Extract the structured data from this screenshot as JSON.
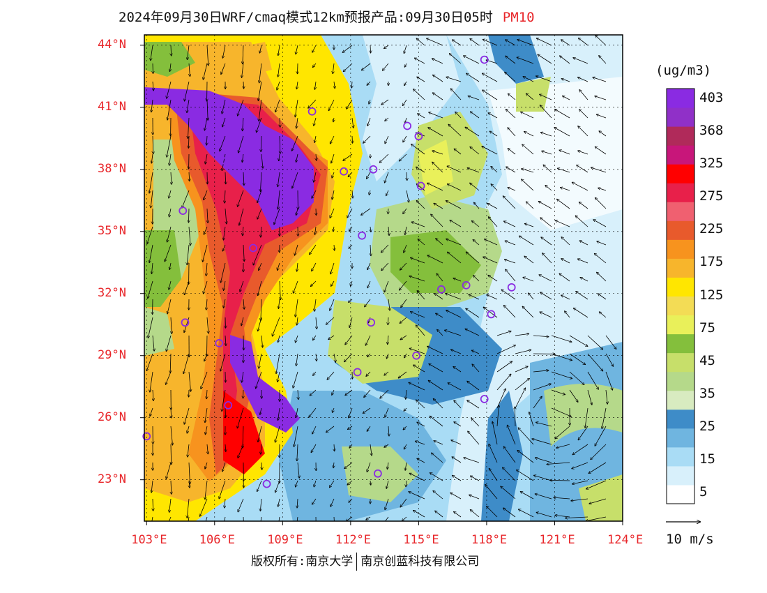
{
  "title": {
    "main": "2024年09月30日WRF/cmaq模式12km预报产品:09月30日05时",
    "pollutant": "PM10"
  },
  "axes": {
    "lat_labels": [
      "44°N",
      "41°N",
      "38°N",
      "35°N",
      "32°N",
      "29°N",
      "26°N",
      "23°N"
    ],
    "lat_values": [
      44,
      41,
      38,
      35,
      32,
      29,
      26,
      23
    ],
    "lon_labels": [
      "103°E",
      "106°E",
      "109°E",
      "112°E",
      "115°E",
      "118°E",
      "121°E",
      "124°E"
    ],
    "lon_values": [
      103,
      106,
      109,
      112,
      115,
      118,
      121,
      124
    ],
    "lon_range": [
      102.9,
      124
    ],
    "lat_range": [
      21,
      44.5
    ]
  },
  "colorbar": {
    "unit": "(ug/m3)",
    "labels": [
      "403",
      "368",
      "325",
      "275",
      "225",
      "175",
      "125",
      "75",
      "45",
      "35",
      "25",
      "15",
      "5"
    ],
    "colors": [
      "#ffffff",
      "#d8f0fb",
      "#a9dcf5",
      "#6fb5e0",
      "#3e8cc8",
      "#d8ebc0",
      "#b5d98a",
      "#c7df6a",
      "#84bf3c",
      "#e9f05a",
      "#f3dc55",
      "#ffe600",
      "#f7b52c",
      "#f7931e",
      "#e85a2c",
      "#f06070",
      "#e8204a",
      "#ff0000",
      "#c8167a",
      "#b02a5a",
      "#9030c8",
      "#8a2be2"
    ]
  },
  "vector_legend": {
    "label": "10 m/s"
  },
  "footer": {
    "left": "版权所有:南京大学",
    "right": "南京创蓝科技有限公司"
  },
  "stations": [
    [
      103.0,
      25.1
    ],
    [
      104.6,
      36.0
    ],
    [
      104.7,
      30.6
    ],
    [
      106.5,
      38.4
    ],
    [
      107.7,
      34.2
    ],
    [
      106.2,
      29.6
    ],
    [
      106.6,
      26.6
    ],
    [
      108.3,
      22.8
    ],
    [
      110.3,
      40.8
    ],
    [
      111.7,
      37.9
    ],
    [
      112.5,
      34.8
    ],
    [
      113.0,
      38.0
    ],
    [
      114.5,
      40.1
    ],
    [
      115.0,
      39.6
    ],
    [
      115.1,
      37.2
    ],
    [
      112.9,
      30.6
    ],
    [
      112.3,
      28.2
    ],
    [
      114.9,
      29.0
    ],
    [
      116.0,
      32.2
    ],
    [
      117.1,
      32.4
    ],
    [
      118.2,
      31.0
    ],
    [
      119.1,
      32.3
    ],
    [
      117.9,
      26.9
    ],
    [
      113.2,
      23.3
    ],
    [
      117.9,
      43.3
    ]
  ]
}
